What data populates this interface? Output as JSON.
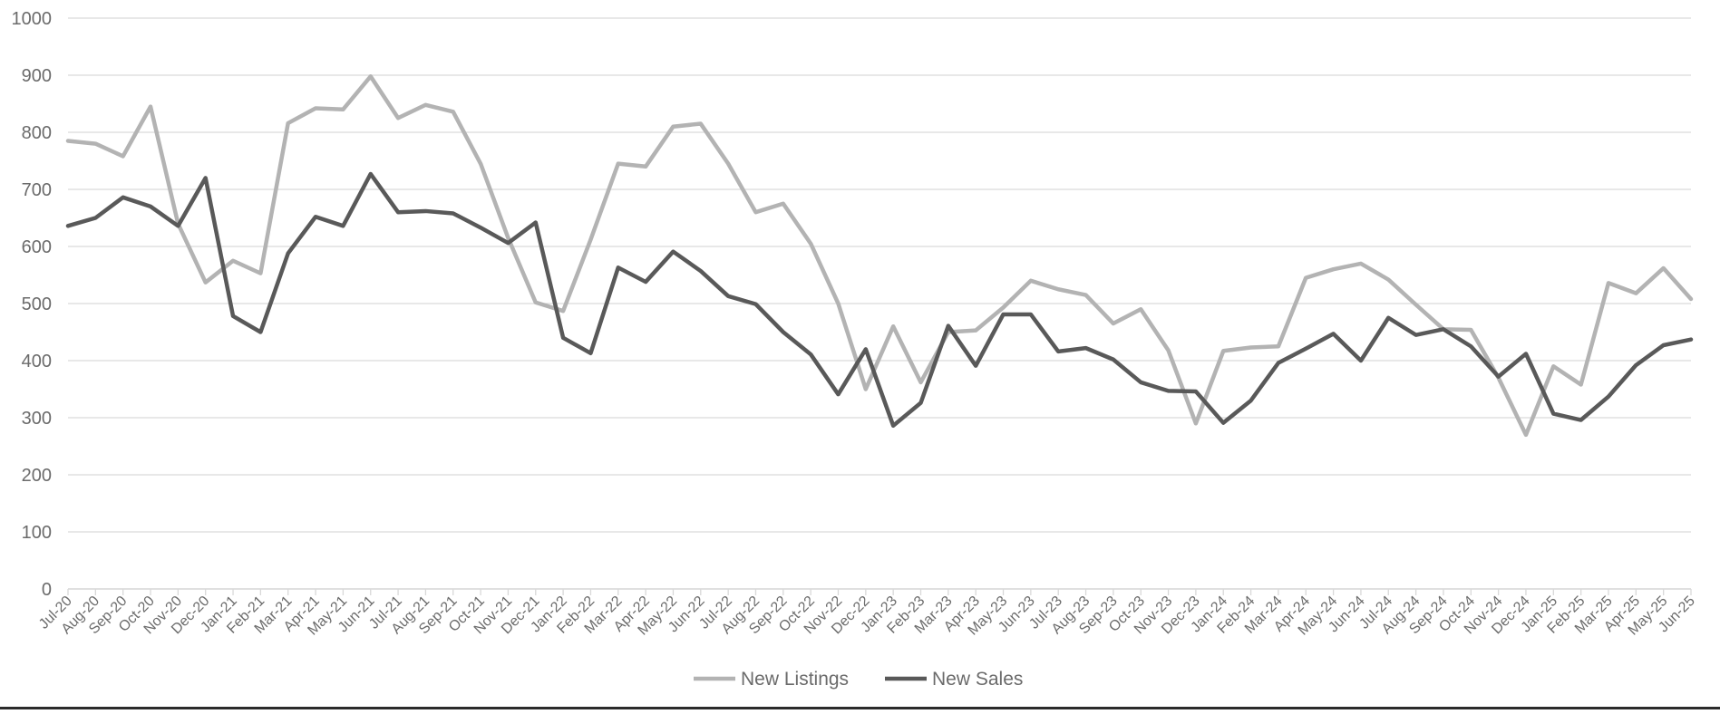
{
  "chart_data": {
    "type": "line",
    "title": "",
    "xlabel": "",
    "ylabel": "",
    "ylim": [
      0,
      1000
    ],
    "yticks": [
      0,
      100,
      200,
      300,
      400,
      500,
      600,
      700,
      800,
      900,
      1000
    ],
    "grid": "horizontal",
    "legend_position": "bottom-center",
    "categories": [
      "Jul-20",
      "Aug-20",
      "Sep-20",
      "Oct-20",
      "Nov-20",
      "Dec-20",
      "Jan-21",
      "Feb-21",
      "Mar-21",
      "Apr-21",
      "May-21",
      "Jun-21",
      "Jul-21",
      "Aug-21",
      "Sep-21",
      "Oct-21",
      "Nov-21",
      "Dec-21",
      "Jan-22",
      "Feb-22",
      "Mar-22",
      "Apr-22",
      "May-22",
      "Jun-22",
      "Jul-22",
      "Aug-22",
      "Sep-22",
      "Oct-22",
      "Nov-22",
      "Dec-22",
      "Jan-23",
      "Feb-23",
      "Mar-23",
      "Apr-23",
      "May-23",
      "Jun-23",
      "Jul-23",
      "Aug-23",
      "Sep-23",
      "Oct-23",
      "Nov-23",
      "Dec-23",
      "Jan-24",
      "Feb-24",
      "Mar-24",
      "Apr-24",
      "May-24",
      "Jun-24",
      "Jul-24",
      "Aug-24",
      "Sep-24",
      "Oct-24",
      "Nov-24",
      "Dec-24",
      "Jan-25",
      "Feb-25",
      "Mar-25",
      "Apr-25",
      "May-25",
      "Jun-25"
    ],
    "series": [
      {
        "name": "New Listings",
        "color": "#b3b3b3",
        "values": [
          785,
          780,
          758,
          845,
          640,
          537,
          575,
          553,
          816,
          842,
          840,
          898,
          825,
          848,
          836,
          745,
          615,
          502,
          487,
          612,
          745,
          740,
          810,
          815,
          745,
          660,
          675,
          605,
          500,
          350,
          460,
          362,
          450,
          453,
          493,
          540,
          525,
          515,
          465,
          490,
          418,
          290,
          417,
          423,
          425,
          545,
          560,
          570,
          542,
          498,
          455,
          454,
          370,
          270,
          390,
          358,
          536,
          518,
          562,
          508
        ]
      },
      {
        "name": "New Sales",
        "color": "#595959",
        "values": [
          636,
          650,
          686,
          670,
          636,
          720,
          478,
          450,
          588,
          652,
          636,
          727,
          660,
          662,
          658,
          633,
          606,
          642,
          440,
          413,
          563,
          538,
          591,
          557,
          513,
          499,
          450,
          411,
          341,
          420,
          286,
          326,
          461,
          391,
          481,
          481,
          416,
          422,
          402,
          362,
          347,
          346,
          291,
          330,
          396,
          421,
          447,
          400,
          475,
          445,
          455,
          425,
          372,
          412,
          307,
          296,
          337,
          392,
          427,
          437
        ]
      }
    ]
  }
}
